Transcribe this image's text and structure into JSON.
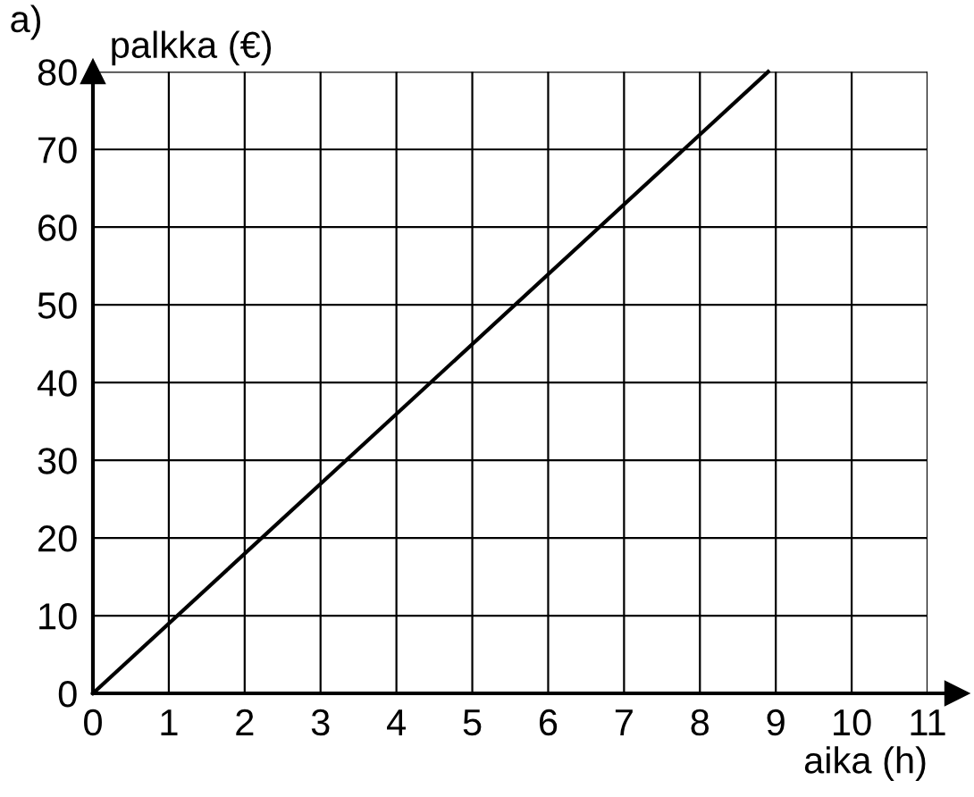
{
  "chart_data": {
    "type": "line",
    "title": "a)",
    "xlabel": "aika (h)",
    "ylabel": "palkka (€)",
    "x": [
      0,
      8.9
    ],
    "series": [
      {
        "color": "#000000",
        "values": [
          0,
          80
        ]
      }
    ],
    "xlim": [
      0,
      11
    ],
    "ylim": [
      0,
      80
    ],
    "xticks": [
      0,
      1,
      2,
      3,
      4,
      5,
      6,
      7,
      8,
      9,
      10,
      11
    ],
    "yticks": [
      0,
      10,
      20,
      30,
      40,
      50,
      60,
      70,
      80
    ],
    "grid": true,
    "marker": "none",
    "line_style": "solid"
  }
}
